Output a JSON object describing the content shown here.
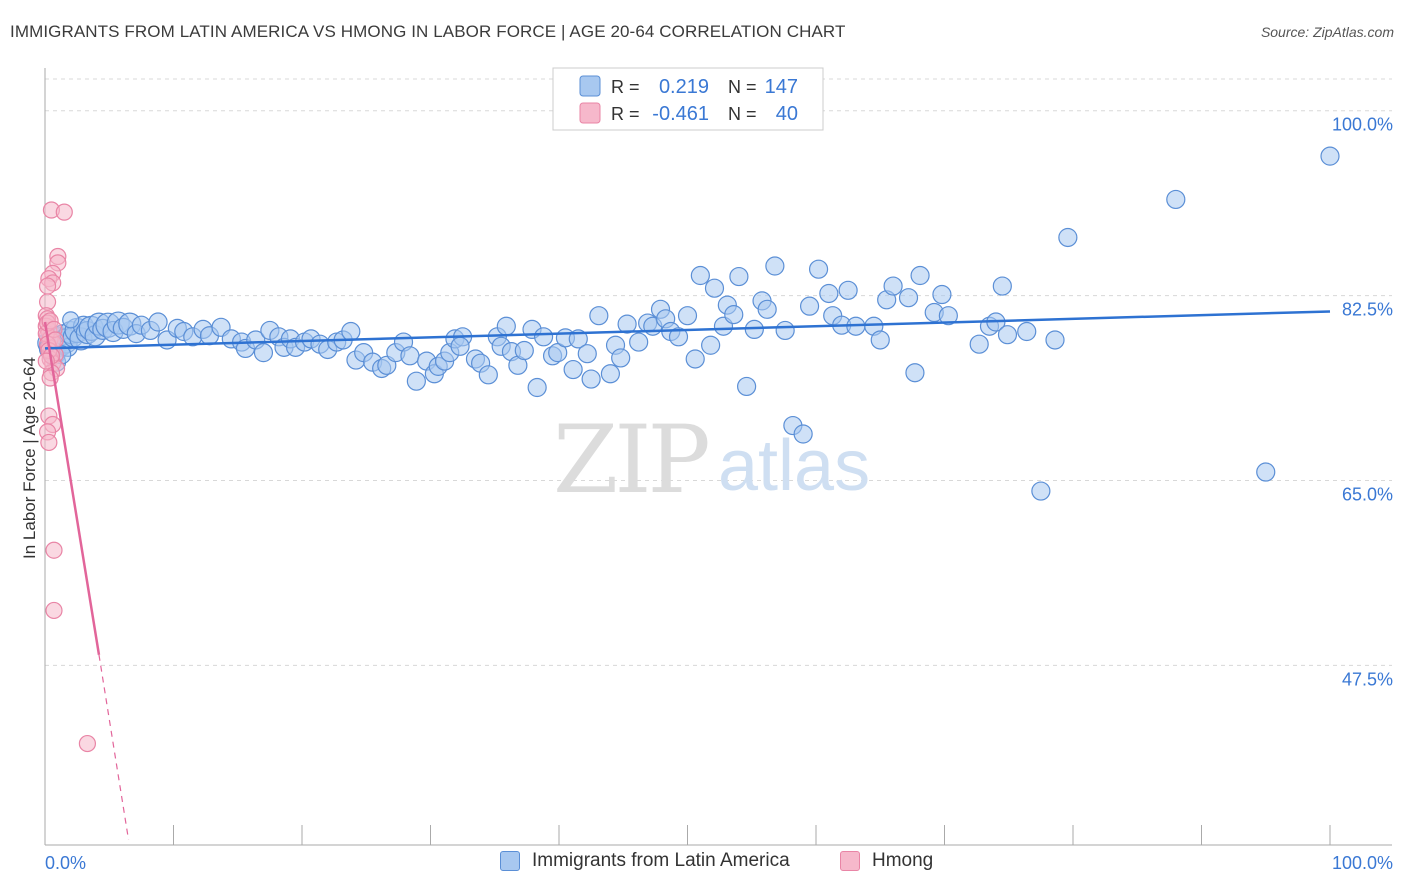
{
  "header": {
    "title": "IMMIGRANTS FROM LATIN AMERICA VS HMONG IN LABOR FORCE | AGE 20-64 CORRELATION CHART",
    "source": "Source: ZipAtlas.com"
  },
  "watermark": {
    "zip": "ZIP",
    "atlas": "atlas"
  },
  "colors": {
    "blue_fill": "#a8c8f0",
    "blue_stroke": "#5b8fd6",
    "blue_line": "#2e72d2",
    "blue_text": "#3a78d4",
    "pink_fill": "#f6b8cb",
    "pink_stroke": "#e985a6",
    "pink_line": "#e2659a",
    "grid": "#d8d8d8",
    "axis": "#aaaaaa"
  },
  "legend_box": {
    "rows": [
      {
        "r_label": "R =",
        "r_value": "0.219",
        "n_label": "N =",
        "n_value": "147"
      },
      {
        "r_label": "R =",
        "r_value": "-0.461",
        "n_label": "N =",
        "n_value": "40"
      }
    ]
  },
  "chart_data": {
    "type": "scatter",
    "title": "IMMIGRANTS FROM LATIN AMERICA VS HMONG IN LABOR FORCE | AGE 20-64 CORRELATION CHART",
    "xlabel": "",
    "ylabel": "In Labor Force | Age 20-64",
    "x_tick_labels": [
      "0.0%",
      "100.0%"
    ],
    "y_tick_labels": [
      "100.0%",
      "82.5%",
      "65.0%",
      "47.5%"
    ],
    "y_ticks": [
      100.0,
      82.5,
      65.0,
      47.5
    ],
    "xlim": [
      0,
      100
    ],
    "ylim": [
      30.5,
      103
    ],
    "grid": true,
    "legend_position": "top-center",
    "series": [
      {
        "name": "Immigrants from Latin America",
        "R": 0.219,
        "N": 147,
        "trend": {
          "x": [
            0,
            100
          ],
          "y": [
            77.5,
            81.0
          ]
        },
        "points": [
          [
            0.3,
            78.0,
            11
          ],
          [
            0.5,
            77.5,
            12
          ],
          [
            0.6,
            78.5,
            11
          ],
          [
            0.8,
            77.0,
            10
          ],
          [
            1.0,
            78.3,
            13
          ],
          [
            1.2,
            77.8,
            11
          ],
          [
            1.4,
            78.8,
            10
          ],
          [
            1.6,
            78.2,
            12
          ],
          [
            1.8,
            77.6,
            9
          ],
          [
            2.0,
            79.0,
            11
          ],
          [
            2.2,
            78.6,
            10
          ],
          [
            2.5,
            79.2,
            12
          ],
          [
            2.8,
            78.4,
            11
          ],
          [
            3.0,
            79.6,
            10
          ],
          [
            3.3,
            79.0,
            11
          ],
          [
            3.6,
            79.4,
            12
          ],
          [
            3.9,
            78.7,
            10
          ],
          [
            4.2,
            79.8,
            11
          ],
          [
            4.5,
            79.3,
            10
          ],
          [
            4.9,
            79.7,
            12
          ],
          [
            5.3,
            79.1,
            10
          ],
          [
            5.7,
            79.9,
            11
          ],
          [
            6.1,
            79.4,
            10
          ],
          [
            6.6,
            79.8,
            11
          ],
          [
            0.9,
            76.2,
            9
          ],
          [
            1.3,
            76.9,
            9
          ],
          [
            2.0,
            80.2,
            8
          ],
          [
            7.1,
            78.9,
            9
          ],
          [
            7.5,
            79.7,
            9
          ],
          [
            8.2,
            79.2,
            9
          ],
          [
            8.8,
            80.0,
            9
          ],
          [
            9.5,
            78.3,
            9
          ],
          [
            10.3,
            79.4,
            9
          ],
          [
            10.8,
            79.1,
            9
          ],
          [
            11.5,
            78.6,
            9
          ],
          [
            12.3,
            79.3,
            9
          ],
          [
            12.8,
            78.7,
            9
          ],
          [
            13.7,
            79.5,
            9
          ],
          [
            14.5,
            78.4,
            9
          ],
          [
            15.3,
            78.1,
            9
          ],
          [
            15.6,
            77.5,
            9
          ],
          [
            16.4,
            78.3,
            9
          ],
          [
            17.0,
            77.1,
            9
          ],
          [
            17.5,
            79.2,
            9
          ],
          [
            18.2,
            78.6,
            9
          ],
          [
            18.6,
            77.6,
            9
          ],
          [
            19.1,
            78.4,
            9
          ],
          [
            19.5,
            77.6,
            9
          ],
          [
            20.2,
            78.1,
            9
          ],
          [
            20.7,
            78.4,
            9
          ],
          [
            21.4,
            77.9,
            9
          ],
          [
            22.0,
            77.4,
            9
          ],
          [
            22.7,
            78.1,
            9
          ],
          [
            23.2,
            78.3,
            9
          ],
          [
            23.8,
            79.1,
            9
          ],
          [
            24.2,
            76.4,
            9
          ],
          [
            24.8,
            77.1,
            9
          ],
          [
            25.5,
            76.2,
            9
          ],
          [
            26.2,
            75.6,
            9
          ],
          [
            26.6,
            75.9,
            9
          ],
          [
            27.3,
            77.1,
            9
          ],
          [
            27.9,
            78.1,
            9
          ],
          [
            28.4,
            76.8,
            9
          ],
          [
            28.9,
            74.4,
            9
          ],
          [
            29.7,
            76.3,
            9
          ],
          [
            30.3,
            75.1,
            9
          ],
          [
            30.6,
            75.8,
            9
          ],
          [
            31.1,
            76.3,
            9
          ],
          [
            31.5,
            77.1,
            9
          ],
          [
            31.9,
            78.4,
            9
          ],
          [
            32.5,
            78.6,
            9
          ],
          [
            32.3,
            77.7,
            9
          ],
          [
            33.5,
            76.5,
            9
          ],
          [
            33.9,
            76.1,
            9
          ],
          [
            34.5,
            75.0,
            9
          ],
          [
            35.2,
            78.6,
            9
          ],
          [
            35.5,
            77.7,
            9
          ],
          [
            35.9,
            79.6,
            9
          ],
          [
            36.3,
            77.2,
            9
          ],
          [
            36.8,
            75.9,
            9
          ],
          [
            37.3,
            77.3,
            9
          ],
          [
            37.9,
            79.3,
            9
          ],
          [
            38.3,
            73.8,
            9
          ],
          [
            38.8,
            78.6,
            9
          ],
          [
            39.5,
            76.8,
            9
          ],
          [
            39.9,
            77.1,
            9
          ],
          [
            40.5,
            78.5,
            9
          ],
          [
            41.1,
            75.5,
            9
          ],
          [
            41.5,
            78.4,
            9
          ],
          [
            42.2,
            77.0,
            9
          ],
          [
            42.5,
            74.6,
            9
          ],
          [
            43.1,
            80.6,
            9
          ],
          [
            44.0,
            75.1,
            9
          ],
          [
            44.4,
            77.8,
            9
          ],
          [
            44.8,
            76.6,
            9
          ],
          [
            45.3,
            79.8,
            9
          ],
          [
            46.2,
            78.1,
            9
          ],
          [
            46.9,
            79.9,
            9
          ],
          [
            47.3,
            79.6,
            9
          ],
          [
            47.9,
            81.2,
            9
          ],
          [
            48.3,
            80.3,
            9
          ],
          [
            48.7,
            79.1,
            9
          ],
          [
            49.3,
            78.6,
            9
          ],
          [
            50.0,
            80.6,
            9
          ],
          [
            50.6,
            76.5,
            9
          ],
          [
            51.0,
            84.4,
            9
          ],
          [
            51.8,
            77.8,
            9
          ],
          [
            52.1,
            83.2,
            9
          ],
          [
            52.8,
            79.6,
            9
          ],
          [
            53.1,
            81.6,
            9
          ],
          [
            53.6,
            80.7,
            9
          ],
          [
            54.0,
            84.3,
            9
          ],
          [
            54.6,
            73.9,
            9
          ],
          [
            55.2,
            79.3,
            9
          ],
          [
            55.8,
            82.0,
            9
          ],
          [
            56.2,
            81.2,
            9
          ],
          [
            56.8,
            85.3,
            9
          ],
          [
            57.6,
            79.2,
            9
          ],
          [
            58.2,
            70.2,
            9
          ],
          [
            59.0,
            69.4,
            9
          ],
          [
            59.5,
            81.5,
            9
          ],
          [
            60.2,
            85.0,
            9
          ],
          [
            61.0,
            82.7,
            9
          ],
          [
            61.3,
            80.6,
            9
          ],
          [
            62.0,
            79.7,
            9
          ],
          [
            62.5,
            83.0,
            9
          ],
          [
            63.1,
            79.6,
            9
          ],
          [
            64.5,
            79.6,
            9
          ],
          [
            65.0,
            78.3,
            9
          ],
          [
            65.5,
            82.1,
            9
          ],
          [
            66.0,
            83.4,
            9
          ],
          [
            67.2,
            82.3,
            9
          ],
          [
            67.7,
            75.2,
            9
          ],
          [
            68.1,
            84.4,
            9
          ],
          [
            69.2,
            80.9,
            9
          ],
          [
            69.8,
            82.6,
            9
          ],
          [
            70.3,
            80.6,
            9
          ],
          [
            72.7,
            77.9,
            9
          ],
          [
            73.5,
            79.6,
            9
          ],
          [
            74.0,
            80.0,
            9
          ],
          [
            74.5,
            83.4,
            9
          ],
          [
            74.9,
            78.8,
            9
          ],
          [
            76.4,
            79.1,
            9
          ],
          [
            77.5,
            64.0,
            9
          ],
          [
            78.6,
            78.3,
            9
          ],
          [
            79.6,
            88.0,
            9
          ],
          [
            88.0,
            91.6,
            9
          ],
          [
            95.0,
            65.8,
            9
          ],
          [
            100.0,
            95.7,
            9
          ]
        ]
      },
      {
        "name": "Hmong",
        "R": -0.461,
        "N": 40,
        "trend": {
          "x": [
            0,
            4.2
          ],
          "y": [
            80.0,
            48.5
          ]
        },
        "trend_dashed": {
          "x": [
            4.2,
            6.5
          ],
          "y": [
            48.5,
            31.0
          ]
        },
        "points": [
          [
            0.5,
            90.6
          ],
          [
            1.5,
            90.4
          ],
          [
            1.0,
            86.2
          ],
          [
            1.0,
            85.6
          ],
          [
            0.6,
            84.6
          ],
          [
            0.3,
            84.1
          ],
          [
            0.6,
            83.7
          ],
          [
            0.2,
            83.4
          ],
          [
            0.2,
            81.9
          ],
          [
            0.1,
            80.6
          ],
          [
            0.2,
            80.3
          ],
          [
            0.1,
            79.6
          ],
          [
            0.3,
            79.2
          ],
          [
            0.2,
            78.7
          ],
          [
            0.4,
            78.4
          ],
          [
            0.6,
            78.1
          ],
          [
            0.3,
            77.6
          ],
          [
            0.5,
            77.2
          ],
          [
            0.8,
            76.9
          ],
          [
            0.4,
            76.5
          ],
          [
            0.6,
            76.1
          ],
          [
            0.9,
            75.6
          ],
          [
            0.5,
            75.2
          ],
          [
            0.4,
            74.7
          ],
          [
            0.3,
            71.1
          ],
          [
            0.6,
            70.3
          ],
          [
            0.2,
            69.6
          ],
          [
            0.3,
            68.6
          ],
          [
            0.7,
            58.4
          ],
          [
            0.7,
            52.7
          ],
          [
            3.3,
            40.1
          ],
          [
            0.1,
            78.9
          ],
          [
            0.2,
            77.9
          ],
          [
            0.3,
            77.3
          ],
          [
            0.5,
            76.8
          ],
          [
            0.1,
            76.3
          ],
          [
            0.2,
            79.9
          ],
          [
            0.4,
            80.1
          ],
          [
            0.7,
            79.3
          ],
          [
            0.8,
            78.3
          ]
        ]
      }
    ]
  },
  "bottom_legend": {
    "items": [
      "Immigrants from Latin America",
      "Hmong"
    ]
  }
}
